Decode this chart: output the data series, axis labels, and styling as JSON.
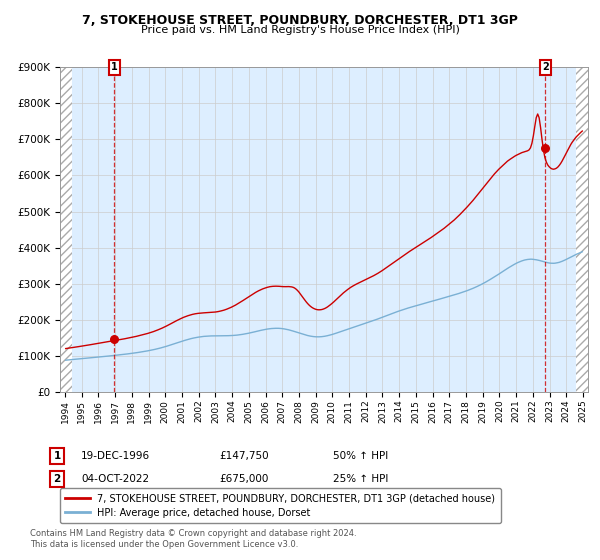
{
  "title": "7, STOKEHOUSE STREET, POUNDBURY, DORCHESTER, DT1 3GP",
  "subtitle": "Price paid vs. HM Land Registry's House Price Index (HPI)",
  "legend_line1": "7, STOKEHOUSE STREET, POUNDBURY, DORCHESTER, DT1 3GP (detached house)",
  "legend_line2": "HPI: Average price, detached house, Dorset",
  "annotation1_label": "1",
  "annotation1_date": "19-DEC-1996",
  "annotation1_price": "£147,750",
  "annotation1_hpi": "50% ↑ HPI",
  "annotation2_label": "2",
  "annotation2_date": "04-OCT-2022",
  "annotation2_price": "£675,000",
  "annotation2_hpi": "25% ↑ HPI",
  "footer": "Contains HM Land Registry data © Crown copyright and database right 2024.\nThis data is licensed under the Open Government Licence v3.0.",
  "red_color": "#cc0000",
  "blue_color": "#7ab0d4",
  "grid_color": "#cccccc",
  "bg_color": "#ddeeff",
  "ylim": [
    0,
    900000
  ],
  "yticks": [
    0,
    100000,
    200000,
    300000,
    400000,
    500000,
    600000,
    700000,
    800000,
    900000
  ],
  "ytick_labels": [
    "£0",
    "£100K",
    "£200K",
    "£300K",
    "£400K",
    "£500K",
    "£600K",
    "£700K",
    "£800K",
    "£900K"
  ],
  "xlim_start": 1993.7,
  "xlim_end": 2025.3,
  "sale1_x": 1996.96,
  "sale1_y": 147750,
  "sale2_x": 2022.75,
  "sale2_y": 675000,
  "hatch_x_start": 1993.7,
  "hatch_x_end": 1994.42,
  "hatch_x_start2": 2024.58,
  "hatch_x_end2": 2025.3
}
